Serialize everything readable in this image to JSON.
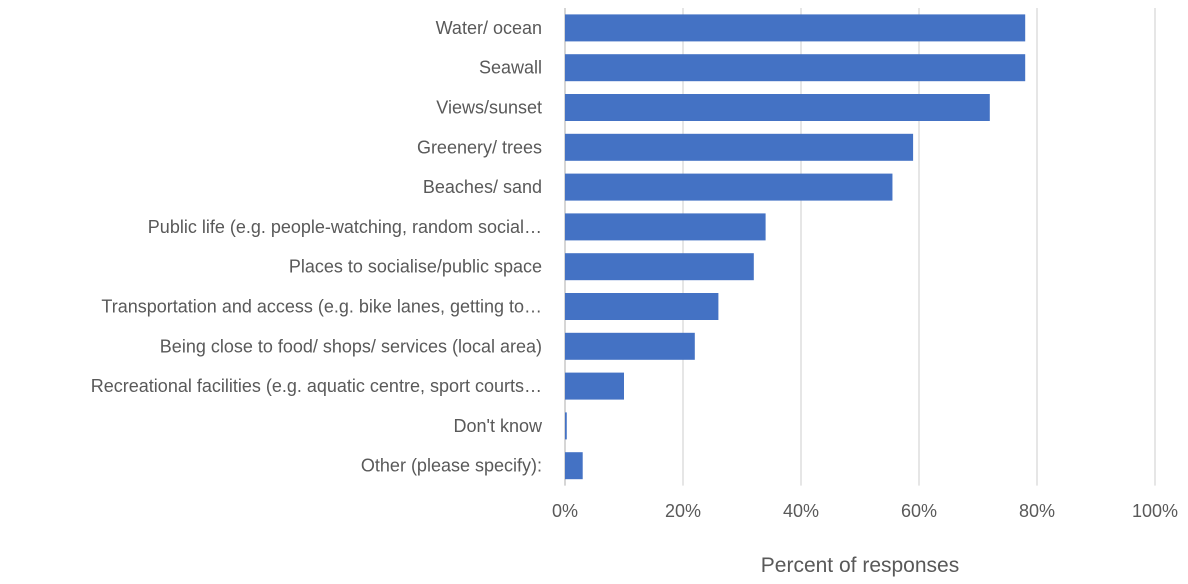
{
  "chart_data": {
    "type": "bar",
    "orientation": "horizontal",
    "categories": [
      "Water/ ocean",
      "Seawall",
      "Views/sunset",
      "Greenery/ trees",
      "Beaches/ sand",
      "Public life (e.g. people-watching, random social…",
      "Places to socialise/public space",
      "Transportation and access (e.g. bike lanes, getting to…",
      "Being close to food/ shops/ services (local area)",
      "Recreational facilities (e.g. aquatic centre, sport courts…",
      "Don't know",
      "Other (please specify):"
    ],
    "values": [
      78,
      78,
      72,
      59,
      55.5,
      34,
      32,
      26,
      22,
      10,
      0.3,
      3
    ],
    "xlabel": "Percent of responses",
    "ylabel": "",
    "xlim": [
      0,
      100
    ],
    "x_tick_labels": [
      "0%",
      "20%",
      "40%",
      "60%",
      "80%",
      "100%"
    ],
    "grid": "vertical",
    "legend": "none",
    "bar_color": "#4472C4",
    "grid_color": "#d9d9d9",
    "text_color": "#595959"
  }
}
